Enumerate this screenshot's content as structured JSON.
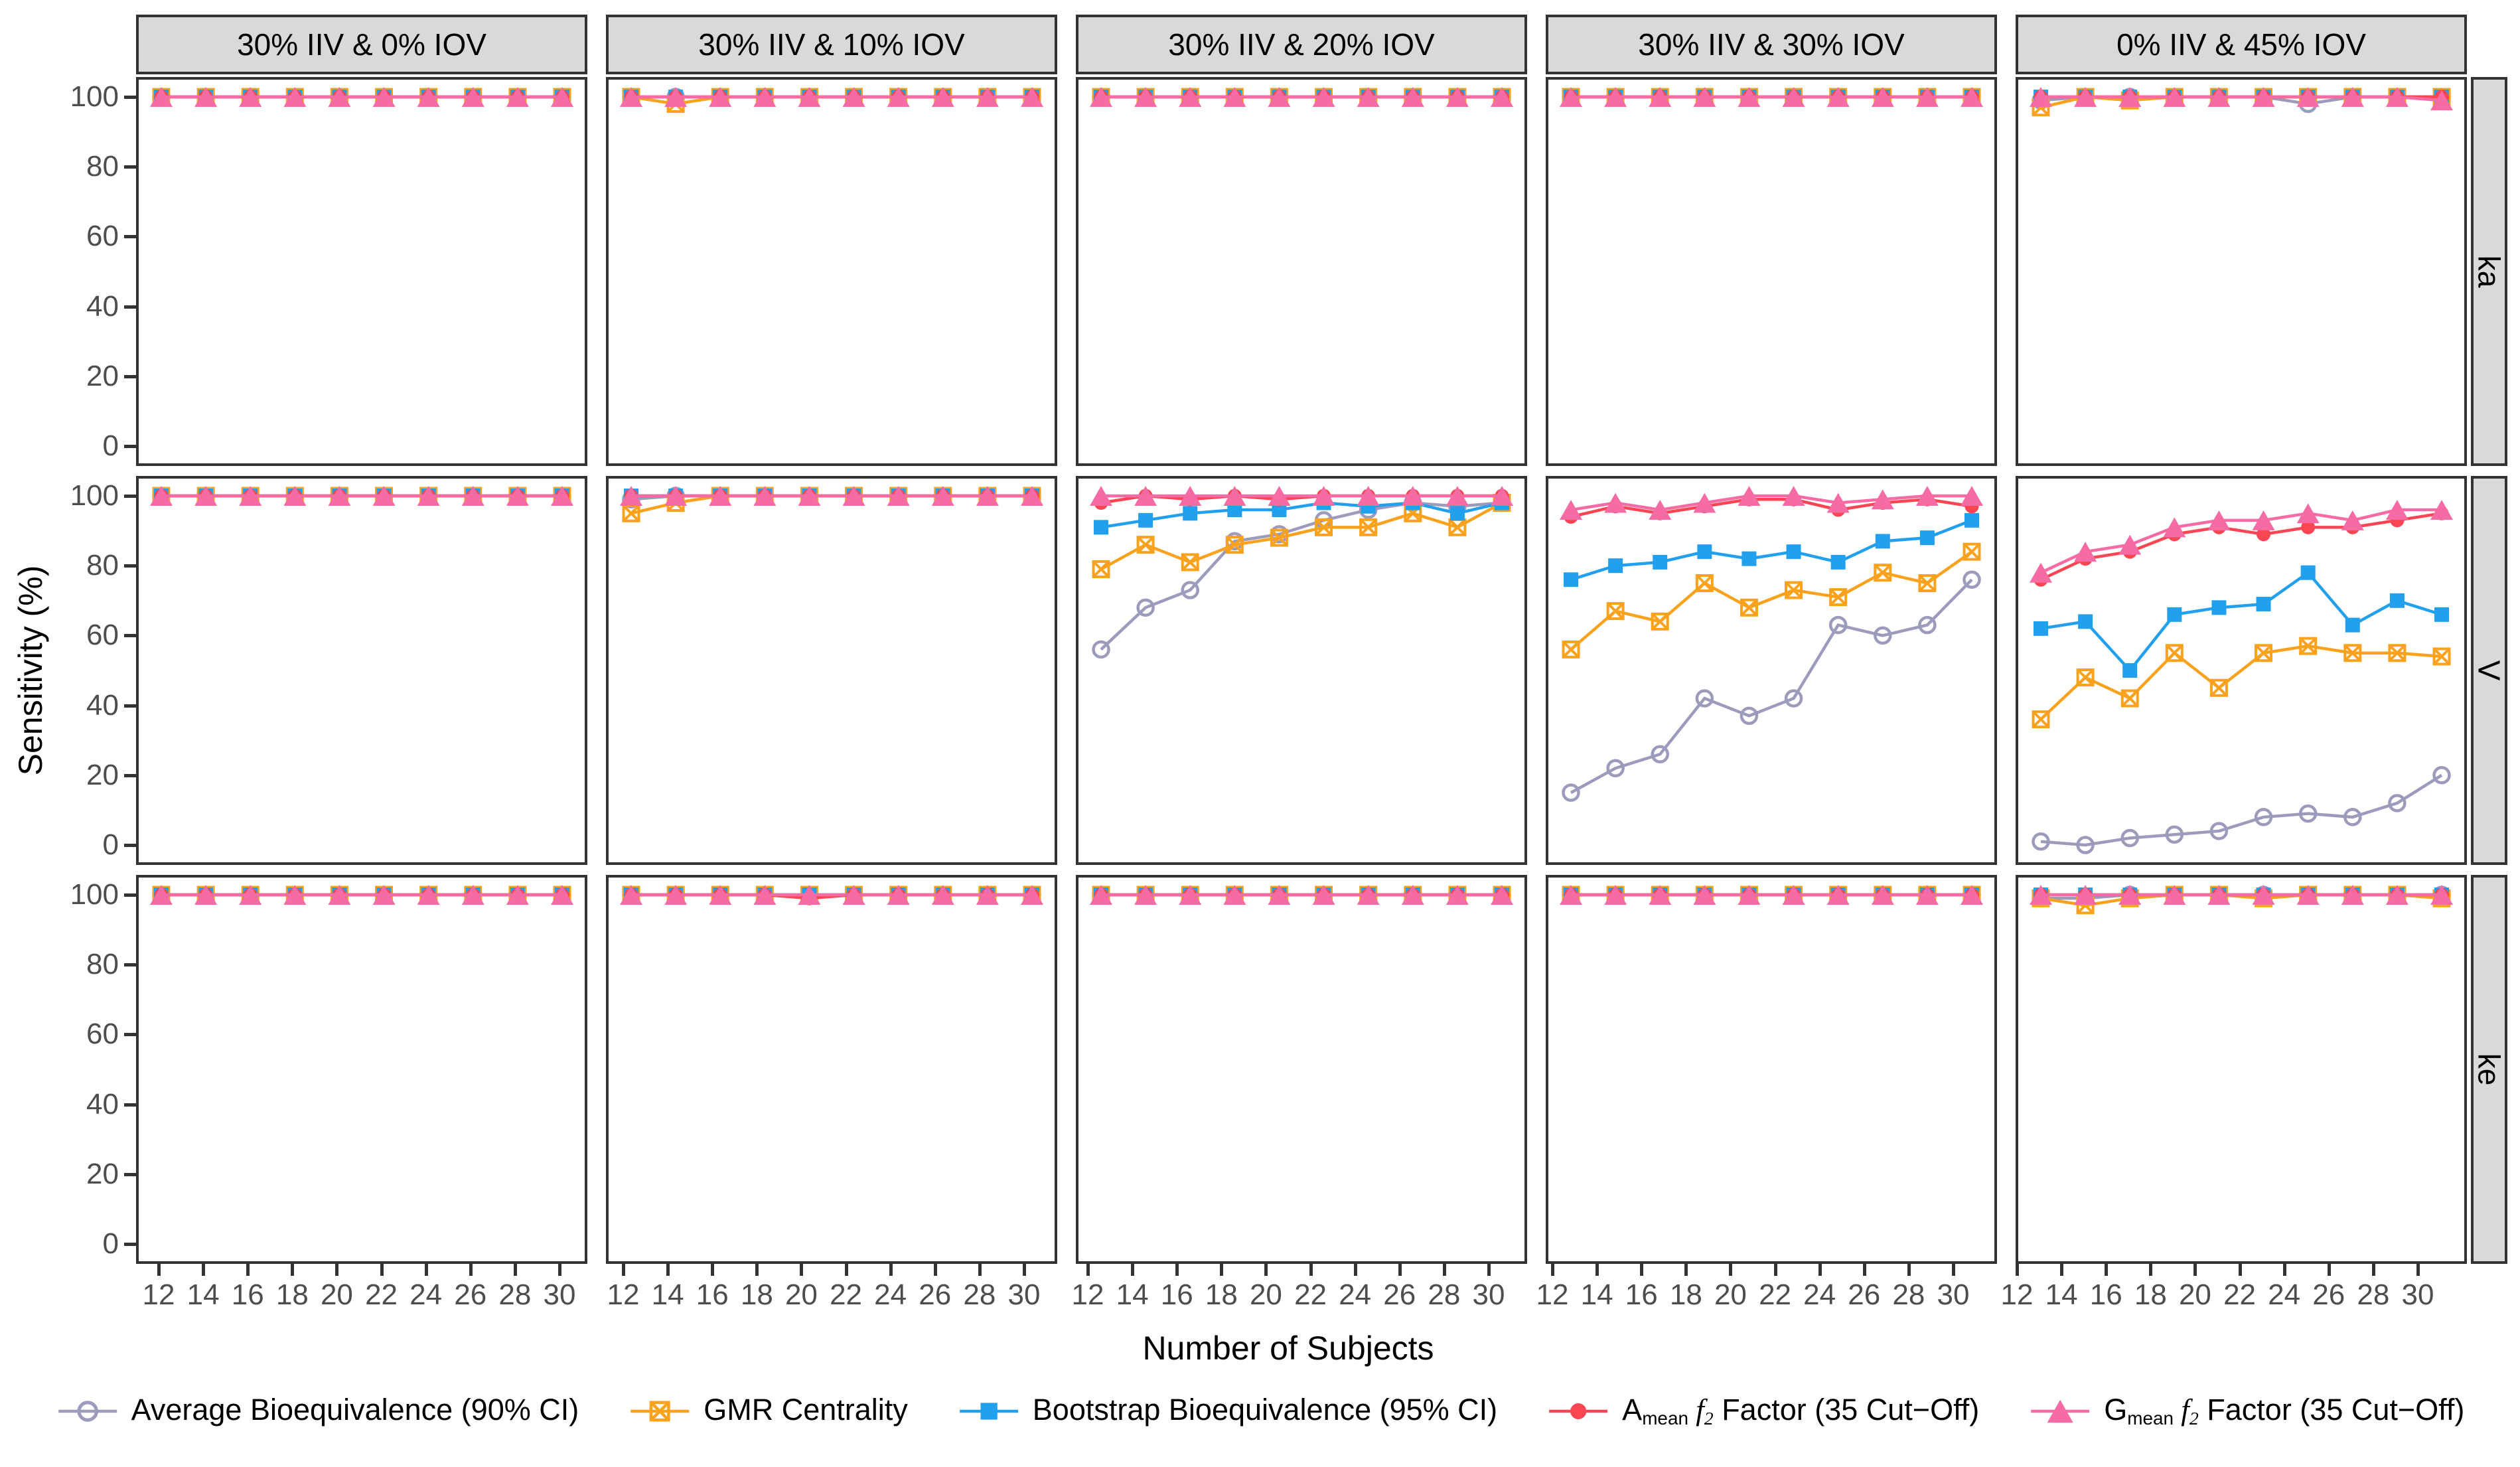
{
  "figure": {
    "y_axis_title": "Sensitivity (%)",
    "x_axis_title": "Number of Subjects",
    "y_ticks": [
      100,
      80,
      60,
      40,
      20,
      0
    ],
    "x_ticks": [
      12,
      14,
      16,
      18,
      20,
      22,
      24,
      26,
      28,
      30
    ],
    "col_headers": [
      "30% IIV & 0% IOV",
      "30% IIV & 10% IOV",
      "30% IIV & 20% IOV",
      "30% IIV & 30% IOV",
      "0% IIV & 45% IOV"
    ],
    "row_labels": [
      "ka",
      "V",
      "ke"
    ]
  },
  "colors": {
    "avg": "#9c9bbc",
    "gmr": "#faa21e",
    "boot": "#22a0ee",
    "amean": "#fa4653",
    "gmean": "#f76ba4",
    "strip_bg": "#d9d9d9",
    "panel_border": "#333333",
    "tick_text": "#4d4d4d"
  },
  "legend": {
    "items": [
      {
        "key": "avg",
        "marker": "open-circle",
        "color": "#9c9bbc",
        "parts": {
          "p1": "Average Bioequivalence (90% CI)",
          "sub1": "",
          "p2": "",
          "sub2": "",
          "p3": ""
        }
      },
      {
        "key": "gmr",
        "marker": "crossed-square",
        "color": "#faa21e",
        "parts": {
          "p1": "GMR Centrality",
          "sub1": "",
          "p2": "",
          "sub2": "",
          "p3": ""
        }
      },
      {
        "key": "boot",
        "marker": "filled-square",
        "color": "#22a0ee",
        "parts": {
          "p1": "Bootstrap Bioequivalence (95% CI)",
          "sub1": "",
          "p2": "",
          "sub2": "",
          "p3": ""
        }
      },
      {
        "key": "amean",
        "marker": "filled-circle",
        "color": "#fa4653",
        "parts": {
          "p1": "A",
          "sub1": "mean",
          "p2": " f",
          "sub2": "2",
          "p3": " Factor (35 Cut−Off)"
        }
      },
      {
        "key": "gmean",
        "marker": "filled-triangle",
        "color": "#f76ba4",
        "parts": {
          "p1": "G",
          "sub1": "mean",
          "p2": " f",
          "sub2": "2",
          "p3": " Factor (35 Cut−Off)"
        }
      }
    ]
  },
  "chart_data": {
    "type": "line",
    "x": [
      12,
      14,
      16,
      18,
      20,
      22,
      24,
      26,
      28,
      30
    ],
    "xlabel": "Number of Subjects",
    "ylabel": "Sensitivity (%)",
    "ylim": [
      0,
      100
    ],
    "grid": false,
    "legend_position": "bottom",
    "series_meta": [
      {
        "key": "avg",
        "name": "Average Bioequivalence (90% CI)",
        "color": "#9c9bbc",
        "marker": "open-circle"
      },
      {
        "key": "gmr",
        "name": "GMR Centrality",
        "color": "#faa21e",
        "marker": "crossed-square"
      },
      {
        "key": "boot",
        "name": "Bootstrap Bioequivalence (95% CI)",
        "color": "#22a0ee",
        "marker": "filled-square"
      },
      {
        "key": "amean",
        "name": "Amean f2 Factor (35 Cut−Off)",
        "color": "#fa4653",
        "marker": "filled-circle"
      },
      {
        "key": "gmean",
        "name": "Gmean f2 Factor (35 Cut−Off)",
        "color": "#f76ba4",
        "marker": "filled-triangle"
      }
    ],
    "facets": [
      {
        "row": "ka",
        "col": "30% IIV & 0% IOV",
        "series": {
          "avg": [
            100,
            100,
            100,
            100,
            100,
            100,
            100,
            100,
            100,
            100
          ],
          "gmr": [
            100,
            100,
            100,
            100,
            100,
            100,
            100,
            100,
            100,
            100
          ],
          "boot": [
            100,
            100,
            100,
            100,
            100,
            100,
            100,
            100,
            100,
            100
          ],
          "amean": [
            100,
            100,
            100,
            100,
            100,
            100,
            100,
            100,
            100,
            100
          ],
          "gmean": [
            100,
            100,
            100,
            100,
            100,
            100,
            100,
            100,
            100,
            100
          ]
        }
      },
      {
        "row": "ka",
        "col": "30% IIV & 10% IOV",
        "series": {
          "avg": [
            100,
            100,
            100,
            100,
            100,
            100,
            100,
            100,
            100,
            100
          ],
          "gmr": [
            100,
            98,
            100,
            100,
            100,
            100,
            100,
            100,
            100,
            100
          ],
          "boot": [
            100,
            100,
            100,
            100,
            100,
            100,
            100,
            100,
            100,
            100
          ],
          "amean": [
            100,
            100,
            100,
            100,
            100,
            100,
            100,
            100,
            100,
            100
          ],
          "gmean": [
            100,
            100,
            100,
            100,
            100,
            100,
            100,
            100,
            100,
            100
          ]
        }
      },
      {
        "row": "ka",
        "col": "30% IIV & 20% IOV",
        "series": {
          "avg": [
            100,
            100,
            100,
            100,
            100,
            100,
            100,
            100,
            100,
            100
          ],
          "gmr": [
            100,
            100,
            100,
            100,
            100,
            100,
            100,
            100,
            100,
            100
          ],
          "boot": [
            100,
            100,
            100,
            100,
            100,
            100,
            100,
            100,
            100,
            100
          ],
          "amean": [
            100,
            100,
            100,
            100,
            100,
            100,
            100,
            100,
            100,
            100
          ],
          "gmean": [
            100,
            100,
            100,
            100,
            100,
            100,
            100,
            100,
            100,
            100
          ]
        }
      },
      {
        "row": "ka",
        "col": "30% IIV & 30% IOV",
        "series": {
          "avg": [
            100,
            100,
            100,
            100,
            100,
            100,
            100,
            100,
            100,
            100
          ],
          "gmr": [
            100,
            100,
            100,
            100,
            100,
            100,
            100,
            100,
            100,
            100
          ],
          "boot": [
            100,
            100,
            100,
            100,
            100,
            100,
            100,
            100,
            100,
            100
          ],
          "amean": [
            100,
            100,
            100,
            100,
            100,
            100,
            100,
            100,
            100,
            100
          ],
          "gmean": [
            100,
            100,
            100,
            100,
            100,
            100,
            100,
            100,
            100,
            100
          ]
        }
      },
      {
        "row": "ka",
        "col": "0% IIV & 45% IOV",
        "series": {
          "avg": [
            99,
            100,
            100,
            100,
            100,
            100,
            98,
            100,
            100,
            100
          ],
          "gmr": [
            97,
            100,
            99,
            100,
            100,
            100,
            100,
            100,
            100,
            100
          ],
          "boot": [
            100,
            100,
            100,
            100,
            100,
            100,
            100,
            100,
            100,
            100
          ],
          "amean": [
            100,
            100,
            100,
            100,
            100,
            100,
            100,
            100,
            100,
            100
          ],
          "gmean": [
            100,
            100,
            100,
            100,
            100,
            100,
            100,
            100,
            100,
            99
          ]
        }
      },
      {
        "row": "V",
        "col": "30% IIV & 0% IOV",
        "series": {
          "avg": [
            100,
            100,
            100,
            100,
            100,
            100,
            100,
            100,
            100,
            100
          ],
          "gmr": [
            100,
            100,
            100,
            100,
            100,
            100,
            100,
            100,
            100,
            100
          ],
          "boot": [
            100,
            100,
            100,
            100,
            100,
            100,
            100,
            100,
            100,
            100
          ],
          "amean": [
            100,
            100,
            100,
            100,
            100,
            100,
            100,
            100,
            100,
            100
          ],
          "gmean": [
            100,
            100,
            100,
            100,
            100,
            100,
            100,
            100,
            100,
            100
          ]
        }
      },
      {
        "row": "V",
        "col": "30% IIV & 10% IOV",
        "series": {
          "avg": [
            99,
            100,
            100,
            100,
            100,
            100,
            100,
            100,
            100,
            100
          ],
          "gmr": [
            95,
            98,
            100,
            100,
            100,
            100,
            100,
            100,
            100,
            100
          ],
          "boot": [
            100,
            100,
            100,
            100,
            100,
            100,
            100,
            100,
            100,
            100
          ],
          "amean": [
            100,
            100,
            100,
            100,
            100,
            100,
            100,
            100,
            100,
            100
          ],
          "gmean": [
            100,
            100,
            100,
            100,
            100,
            100,
            100,
            100,
            100,
            100
          ]
        }
      },
      {
        "row": "V",
        "col": "30% IIV & 20% IOV",
        "series": {
          "avg": [
            56,
            68,
            73,
            87,
            89,
            93,
            96,
            98,
            97,
            98
          ],
          "gmr": [
            79,
            86,
            81,
            86,
            88,
            91,
            91,
            95,
            91,
            98
          ],
          "boot": [
            91,
            93,
            95,
            96,
            96,
            98,
            97,
            98,
            95,
            98
          ],
          "amean": [
            98,
            100,
            99,
            100,
            99,
            100,
            100,
            100,
            100,
            100
          ],
          "gmean": [
            100,
            100,
            100,
            100,
            100,
            100,
            100,
            100,
            100,
            100
          ]
        }
      },
      {
        "row": "V",
        "col": "30% IIV & 30% IOV",
        "series": {
          "avg": [
            15,
            22,
            26,
            42,
            37,
            42,
            63,
            60,
            63,
            76
          ],
          "gmr": [
            56,
            67,
            64,
            75,
            68,
            73,
            71,
            78,
            75,
            84
          ],
          "boot": [
            76,
            80,
            81,
            84,
            82,
            84,
            81,
            87,
            88,
            93
          ],
          "amean": [
            94,
            97,
            95,
            97,
            99,
            99,
            96,
            98,
            99,
            97
          ],
          "gmean": [
            96,
            98,
            96,
            98,
            100,
            100,
            98,
            99,
            100,
            100
          ]
        }
      },
      {
        "row": "V",
        "col": "0% IIV & 45% IOV",
        "series": {
          "avg": [
            1,
            0,
            2,
            3,
            4,
            8,
            9,
            8,
            12,
            20
          ],
          "gmr": [
            36,
            48,
            42,
            55,
            45,
            55,
            57,
            55,
            55,
            54
          ],
          "boot": [
            62,
            64,
            50,
            66,
            68,
            69,
            78,
            63,
            70,
            66
          ],
          "amean": [
            76,
            82,
            84,
            89,
            91,
            89,
            91,
            91,
            93,
            95
          ],
          "gmean": [
            78,
            84,
            86,
            91,
            93,
            93,
            95,
            93,
            96,
            96
          ]
        }
      },
      {
        "row": "ke",
        "col": "30% IIV & 0% IOV",
        "series": {
          "avg": [
            100,
            100,
            100,
            100,
            100,
            100,
            100,
            100,
            100,
            100
          ],
          "gmr": [
            100,
            100,
            100,
            100,
            100,
            100,
            100,
            100,
            100,
            100
          ],
          "boot": [
            100,
            100,
            100,
            100,
            100,
            100,
            100,
            100,
            100,
            100
          ],
          "amean": [
            100,
            100,
            100,
            100,
            100,
            100,
            100,
            100,
            100,
            100
          ],
          "gmean": [
            100,
            100,
            100,
            100,
            100,
            100,
            100,
            100,
            100,
            100
          ]
        }
      },
      {
        "row": "ke",
        "col": "30% IIV & 10% IOV",
        "series": {
          "avg": [
            100,
            100,
            100,
            100,
            100,
            100,
            100,
            100,
            100,
            100
          ],
          "gmr": [
            100,
            100,
            100,
            100,
            100,
            100,
            100,
            100,
            100,
            100
          ],
          "boot": [
            100,
            100,
            100,
            100,
            100,
            100,
            100,
            100,
            100,
            100
          ],
          "amean": [
            100,
            100,
            100,
            100,
            99,
            100,
            100,
            100,
            100,
            100
          ],
          "gmean": [
            100,
            100,
            100,
            100,
            100,
            100,
            100,
            100,
            100,
            100
          ]
        }
      },
      {
        "row": "ke",
        "col": "30% IIV & 20% IOV",
        "series": {
          "avg": [
            100,
            100,
            100,
            100,
            100,
            100,
            100,
            100,
            100,
            100
          ],
          "gmr": [
            100,
            100,
            100,
            100,
            100,
            100,
            100,
            100,
            100,
            100
          ],
          "boot": [
            100,
            100,
            100,
            100,
            100,
            100,
            100,
            100,
            100,
            100
          ],
          "amean": [
            100,
            100,
            100,
            100,
            100,
            100,
            100,
            100,
            100,
            100
          ],
          "gmean": [
            100,
            100,
            100,
            100,
            100,
            100,
            100,
            100,
            100,
            100
          ]
        }
      },
      {
        "row": "ke",
        "col": "30% IIV & 30% IOV",
        "series": {
          "avg": [
            100,
            100,
            100,
            100,
            100,
            100,
            100,
            100,
            100,
            100
          ],
          "gmr": [
            100,
            100,
            100,
            100,
            100,
            100,
            100,
            100,
            100,
            100
          ],
          "boot": [
            100,
            100,
            100,
            100,
            100,
            100,
            100,
            100,
            100,
            100
          ],
          "amean": [
            100,
            100,
            100,
            100,
            100,
            100,
            100,
            100,
            100,
            100
          ],
          "gmean": [
            100,
            100,
            100,
            100,
            100,
            100,
            100,
            100,
            100,
            100
          ]
        }
      },
      {
        "row": "ke",
        "col": "0% IIV & 45% IOV",
        "series": {
          "avg": [
            99,
            99,
            100,
            100,
            100,
            100,
            100,
            100,
            100,
            100
          ],
          "gmr": [
            99,
            97,
            99,
            100,
            100,
            99,
            100,
            100,
            100,
            99
          ],
          "boot": [
            100,
            100,
            100,
            100,
            100,
            100,
            100,
            100,
            100,
            100
          ],
          "amean": [
            100,
            100,
            100,
            100,
            100,
            100,
            100,
            100,
            100,
            100
          ],
          "gmean": [
            100,
            100,
            100,
            100,
            100,
            100,
            100,
            100,
            100,
            100
          ]
        }
      }
    ]
  }
}
